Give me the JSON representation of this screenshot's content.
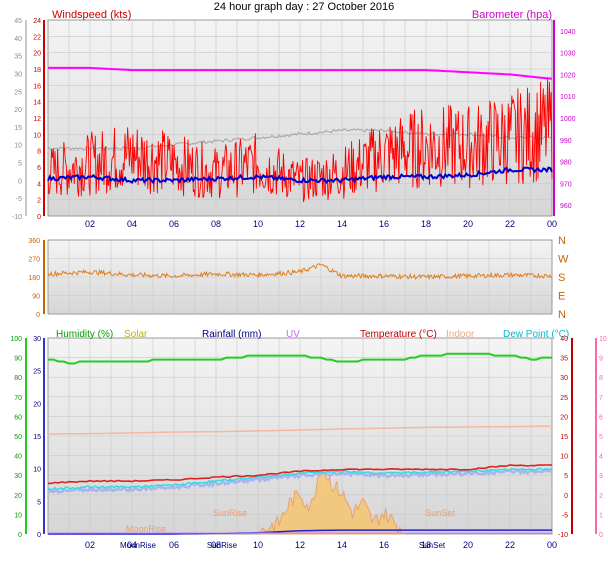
{
  "title": "24 hour graph day : 27 October 2016",
  "chart_data": [
    {
      "id": "wind_baro",
      "type": "line",
      "labels": {
        "windspeed": "Windspeed (kts)",
        "barometer": "Barometer (hpa)"
      },
      "x_ticks": [
        "02",
        "04",
        "06",
        "08",
        "10",
        "12",
        "14",
        "16",
        "18",
        "20",
        "22",
        "00"
      ],
      "y_left_outer": {
        "range": [
          -10,
          45
        ],
        "ticks": [
          -10,
          -5,
          0,
          5,
          10,
          15,
          20,
          25,
          30,
          35,
          40,
          45
        ]
      },
      "y_left_inner": {
        "range": [
          0,
          24
        ],
        "ticks": [
          0,
          2,
          4,
          6,
          8,
          10,
          12,
          14,
          16,
          18,
          20,
          22,
          24
        ]
      },
      "y_right": {
        "range": [
          980,
          1040
        ],
        "ticks": [
          980,
          990,
          1000,
          1010,
          1020,
          1030,
          1040
        ],
        "secondary_ticks": [
          960,
          970
        ]
      },
      "series": [
        {
          "name": "Windspeed (kts)",
          "color": "#ff0000",
          "hours": [
            0,
            2,
            4,
            6,
            8,
            10,
            12,
            14,
            16,
            18,
            20,
            22,
            24
          ],
          "values": [
            5,
            6,
            7,
            6,
            5,
            6,
            4,
            5,
            7,
            8,
            8,
            9,
            10
          ]
        },
        {
          "name": "Barometer (hpa)",
          "color": "#ff00ff",
          "hours": [
            0,
            2,
            4,
            6,
            8,
            10,
            12,
            14,
            16,
            18,
            20,
            22,
            24
          ],
          "values": [
            1023,
            1023,
            1022,
            1022,
            1022,
            1022,
            1022,
            1022,
            1022,
            1022,
            1021,
            1020,
            1018
          ]
        },
        {
          "name": "Temperature (°C)",
          "color": "#aaaaaa",
          "hours": [
            0,
            2,
            4,
            6,
            8,
            10,
            12,
            14,
            16,
            18,
            20,
            22,
            24
          ],
          "values": [
            9,
            9,
            9,
            10,
            11,
            12,
            13,
            14,
            14,
            13,
            13,
            12,
            12
          ]
        },
        {
          "name": "Dew Point (°C)",
          "color": "#0000cc",
          "hours": [
            0,
            2,
            4,
            6,
            8,
            10,
            12,
            14,
            16,
            18,
            20,
            22,
            24
          ],
          "values": [
            0.5,
            1,
            0,
            0,
            0.5,
            1,
            0,
            0,
            1,
            1,
            1.5,
            3,
            3
          ]
        }
      ]
    },
    {
      "id": "direction",
      "type": "line",
      "x_ticks": [],
      "y_left": {
        "range": [
          0,
          360
        ],
        "ticks": [
          0,
          90,
          180,
          270,
          360
        ]
      },
      "y_right_labels": [
        "N",
        "E",
        "S",
        "W",
        "N"
      ],
      "series": [
        {
          "name": "Wind direction",
          "color": "#e08020",
          "hours": [
            0,
            2,
            4,
            6,
            8,
            10,
            12,
            13,
            14,
            16,
            18,
            20,
            22,
            24
          ],
          "values": [
            195,
            205,
            190,
            185,
            195,
            190,
            205,
            240,
            185,
            185,
            180,
            185,
            190,
            185
          ]
        }
      ]
    },
    {
      "id": "humidity_temp",
      "type": "line",
      "labels": {
        "humidity": "Humidity (%)",
        "solar": "Solar",
        "rainfall": "Rainfall (mm)",
        "uv": "UV",
        "temperature": "Temperature (°C)",
        "indoor": "Indoor",
        "dewpoint": "Dew Point (°C)"
      },
      "x_ticks": [
        "02",
        "04",
        "06",
        "08",
        "10",
        "12",
        "14",
        "16",
        "18",
        "20",
        "22",
        "00"
      ],
      "y_left_outer": {
        "range": [
          0,
          100
        ],
        "ticks": [
          0,
          10,
          20,
          30,
          40,
          50,
          60,
          70,
          80,
          90,
          100
        ]
      },
      "y_left_inner": {
        "range": [
          0,
          30
        ],
        "ticks": [
          0,
          5,
          10,
          15,
          20,
          25,
          30
        ]
      },
      "y_right_outer": {
        "range": [
          -10,
          40
        ],
        "ticks": [
          -10,
          -5,
          0,
          5,
          10,
          15,
          20,
          25,
          30,
          35,
          40
        ]
      },
      "y_right_inner": {
        "range": [
          0,
          10
        ],
        "ticks": [
          0,
          1,
          2,
          3,
          4,
          5,
          6,
          7,
          8,
          9,
          10
        ]
      },
      "annotations": [
        {
          "text": "SunRise",
          "hour": 8
        },
        {
          "text": "SunSet",
          "hour": 18
        },
        {
          "text": "MoonRise",
          "hour": 4
        }
      ],
      "bottom_markers": [
        {
          "text": "MoonRise",
          "hour": 4
        },
        {
          "text": "SunRise",
          "hour": 8
        },
        {
          "text": "SunSet",
          "hour": 18
        }
      ],
      "series": [
        {
          "name": "Humidity (%)",
          "color": "#22cc22",
          "hours": [
            0,
            1,
            2,
            4,
            6,
            8,
            9,
            10,
            12,
            14,
            16,
            17,
            18,
            20,
            22,
            23,
            24
          ],
          "values": [
            89,
            87,
            88,
            88,
            89,
            89,
            90,
            91,
            91,
            88,
            89,
            89,
            91,
            92,
            91,
            89,
            90
          ]
        },
        {
          "name": "Indoor",
          "color": "#f4b8a0",
          "hours": [
            0,
            2,
            4,
            6,
            8,
            10,
            12,
            14,
            16,
            18,
            20,
            22,
            24
          ],
          "values": [
            15.5,
            15.6,
            15.8,
            16,
            16.1,
            16.3,
            16.5,
            16.8,
            17,
            17.2,
            17.3,
            17.4,
            17.5
          ]
        },
        {
          "name": "Temperature (°C)",
          "color": "#dd2222",
          "hours": [
            0,
            2,
            4,
            6,
            8,
            10,
            12,
            14,
            16,
            18,
            20,
            22,
            24
          ],
          "values": [
            3,
            3.5,
            3.5,
            3.8,
            4.5,
            5,
            6,
            6.5,
            6.5,
            6.5,
            6.5,
            7.5,
            7.5
          ]
        },
        {
          "name": "Dew Point (°C)",
          "color": "#33dddd",
          "hours": [
            0,
            2,
            4,
            6,
            8,
            10,
            12,
            14,
            16,
            18,
            20,
            22,
            24
          ],
          "values": [
            1.5,
            2,
            2,
            2.5,
            3.5,
            4.5,
            5.5,
            6,
            5.5,
            5.8,
            6,
            6.5,
            6.5
          ]
        },
        {
          "name": "Solar",
          "color": "#e8a070",
          "hours": [
            10,
            11,
            11.5,
            12,
            12.5,
            13,
            13.5,
            14,
            14.5,
            15,
            15.5,
            16,
            16.5,
            17
          ],
          "values": [
            0,
            0.5,
            1.5,
            2,
            1.2,
            3.5,
            2.5,
            2,
            1,
            1.5,
            0.5,
            1,
            0.5,
            0
          ]
        },
        {
          "name": "Rainfall (mm)",
          "color": "#2222cc",
          "hours": [
            0,
            6,
            10,
            12,
            14,
            24
          ],
          "values": [
            0,
            0,
            0.2,
            0.5,
            0.6,
            0.6
          ]
        },
        {
          "name": "UV",
          "color": "#cc88ff",
          "hours": [
            0,
            24
          ],
          "values": [
            0,
            0
          ]
        }
      ]
    }
  ]
}
